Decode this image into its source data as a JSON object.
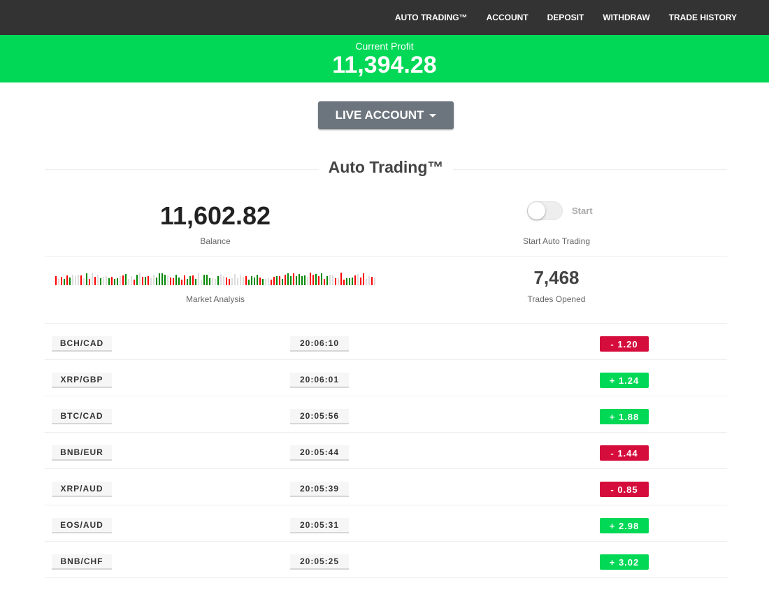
{
  "nav": {
    "items": [
      "AUTO TRADING™",
      "ACCOUNT",
      "DEPOSIT",
      "WITHDRAW",
      "TRADE HISTORY"
    ]
  },
  "profit": {
    "label": "Current Profit",
    "value": "11,394.28"
  },
  "account_button": {
    "label": "LIVE ACCOUNT"
  },
  "section_title": "Auto Trading™",
  "balance": {
    "value": "11,602.82",
    "label": "Balance"
  },
  "toggle": {
    "label": "Start",
    "caption": "Start Auto Trading",
    "on": false
  },
  "market": {
    "label": "Market Analysis"
  },
  "trades": {
    "value": "7,468",
    "label": "Trades Opened"
  },
  "colors": {
    "green": "#00d856",
    "red": "#d50d3c",
    "nav": "#333333",
    "button": "#6c757d"
  },
  "rows": [
    {
      "pair": "BCH/CAD",
      "time": "20:06:10",
      "result": "-  1.20",
      "type": "loss"
    },
    {
      "pair": "XRP/GBP",
      "time": "20:06:01",
      "result": "+  1.24",
      "type": "gain"
    },
    {
      "pair": "BTC/CAD",
      "time": "20:05:56",
      "result": "+  1.88",
      "type": "gain"
    },
    {
      "pair": "BNB/EUR",
      "time": "20:05:44",
      "result": "-  1.44",
      "type": "loss"
    },
    {
      "pair": "XRP/AUD",
      "time": "20:05:39",
      "result": "-  0.85",
      "type": "loss"
    },
    {
      "pair": "EOS/AUD",
      "time": "20:05:31",
      "result": "+  2.98",
      "type": "gain"
    },
    {
      "pair": "BNB/CHF",
      "time": "20:05:25",
      "result": "+  3.02",
      "type": "gain"
    }
  ]
}
